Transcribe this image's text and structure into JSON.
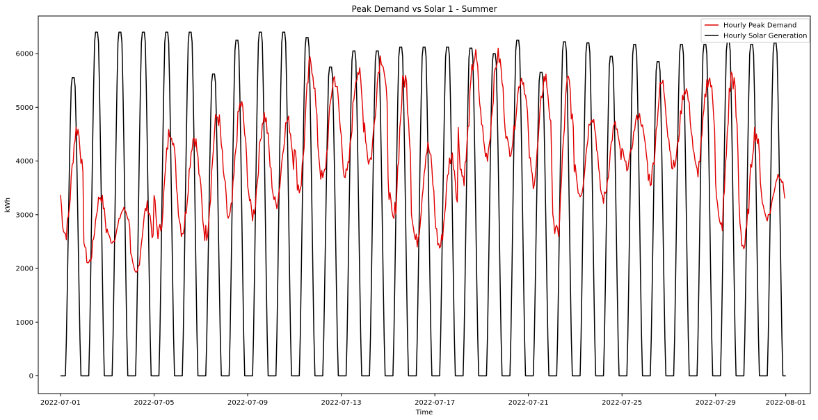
{
  "chart_data": {
    "type": "line",
    "title": "Peak Demand vs Solar 1 - Summer",
    "xlabel": "Time",
    "ylabel": "kWh",
    "x_start": "2022-07-01",
    "x_end": "2022-08-01",
    "xlim": [
      "2021-06-30",
      "2022-08-02"
    ],
    "ylim": [
      -330,
      6700
    ],
    "x_ticks": [
      "2022-07-01",
      "2022-07-05",
      "2022-07-09",
      "2022-07-13",
      "2022-07-17",
      "2022-07-21",
      "2022-07-25",
      "2022-07-29",
      "2022-08-01"
    ],
    "y_ticks": [
      0,
      1000,
      2000,
      3000,
      4000,
      5000,
      6000
    ],
    "grid": false,
    "legend_position": "top-right",
    "series": [
      {
        "name": "Hourly Peak Demand",
        "color": "#e00000",
        "daily_min": [
          2650,
          2100,
          2500,
          1850,
          2650,
          2700,
          2650,
          2900,
          3000,
          3200,
          3500,
          3650,
          3700,
          4000,
          2850,
          2500,
          2400,
          3700,
          4100,
          4200,
          3650,
          2550,
          3400,
          3300,
          3900,
          3650,
          3900,
          3800,
          2700,
          2400,
          2950
        ],
        "daily_max": [
          4600,
          3350,
          3100,
          3150,
          4600,
          4450,
          4850,
          5050,
          4850,
          4750,
          5850,
          5550,
          5700,
          5950,
          5550,
          4250,
          4100,
          5950,
          5950,
          5550,
          5550,
          5450,
          4850,
          4650,
          4850,
          5450,
          5350,
          5550,
          5600,
          4550,
          3750
        ]
      },
      {
        "name": "Hourly Solar Generation",
        "color": "#000000",
        "daily_peak": [
          5550,
          6400,
          6400,
          6400,
          6400,
          6400,
          5620,
          6250,
          6400,
          6400,
          6300,
          5750,
          6050,
          6050,
          6120,
          6120,
          6120,
          6100,
          6000,
          6250,
          5650,
          6220,
          6200,
          5950,
          6170,
          5850,
          6170,
          6170,
          6230,
          6170,
          6200
        ]
      }
    ]
  }
}
